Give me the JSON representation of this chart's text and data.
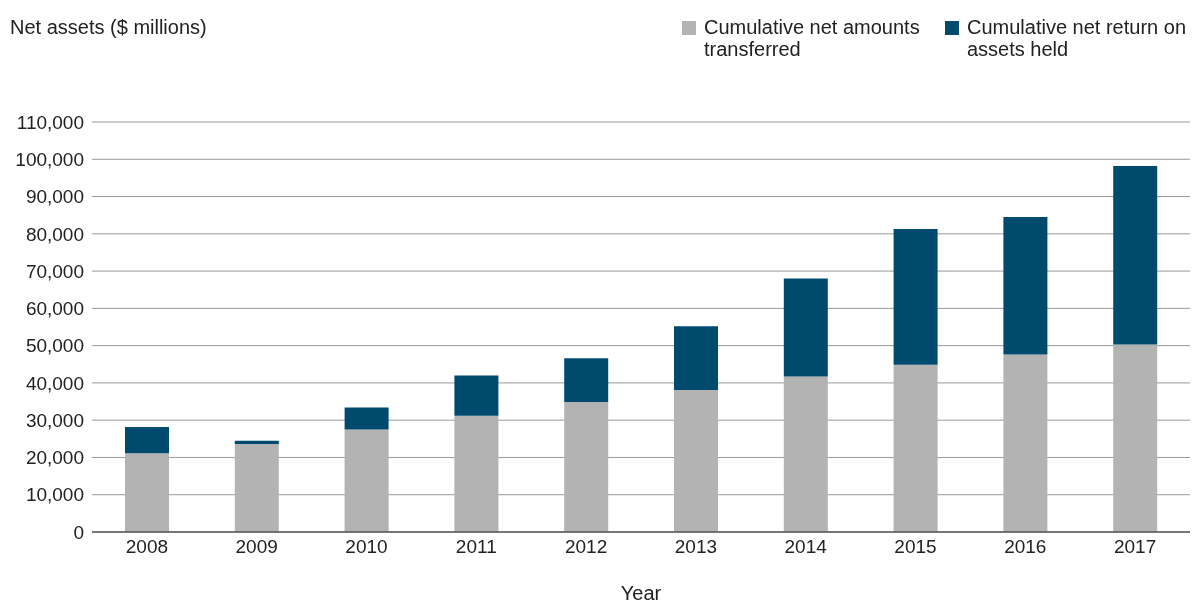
{
  "chart_data": {
    "type": "bar",
    "stacked": true,
    "ylabel": "Net assets ($ millions)",
    "xlabel": "Year",
    "categories": [
      "2008",
      "2009",
      "2010",
      "2011",
      "2012",
      "2013",
      "2014",
      "2015",
      "2016",
      "2017"
    ],
    "series": [
      {
        "name": "Cumulative net amounts transferred",
        "color": "#b3b3b3",
        "values": [
          21100,
          23600,
          27500,
          31200,
          34900,
          38100,
          41700,
          44900,
          47600,
          50300
        ]
      },
      {
        "name": "Cumulative net return on assets held",
        "color": "#004a6e",
        "values": [
          7100,
          900,
          5900,
          10800,
          11700,
          17100,
          26300,
          36400,
          36900,
          47900
        ]
      }
    ],
    "ylim": [
      0,
      110000
    ],
    "yticks": [
      {
        "value": 0,
        "label": "0"
      },
      {
        "value": 10000,
        "label": "10,000"
      },
      {
        "value": 20000,
        "label": "20,000"
      },
      {
        "value": 30000,
        "label": "30,000"
      },
      {
        "value": 40000,
        "label": "40,000"
      },
      {
        "value": 50000,
        "label": "50,000"
      },
      {
        "value": 60000,
        "label": "60,000"
      },
      {
        "value": 70000,
        "label": "70,000"
      },
      {
        "value": 80000,
        "label": "80,000"
      },
      {
        "value": 90000,
        "label": "90,000"
      },
      {
        "value": 100000,
        "label": "100,000"
      },
      {
        "value": 110000,
        "label": "110,000"
      }
    ],
    "grid": "y",
    "legend": "top right"
  }
}
